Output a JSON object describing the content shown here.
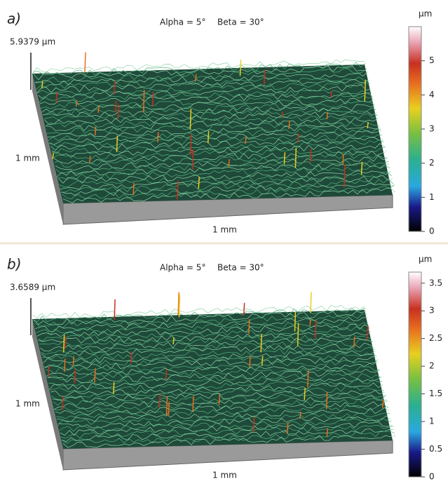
{
  "panels": [
    {
      "label": "a)",
      "alpha": "Alpha = 5°",
      "beta": "Beta = 30°",
      "max_height": "5.9379 µm",
      "y_axis_label": "1 mm",
      "x_axis_label": "1 mm",
      "colorbar": {
        "unit": "µm",
        "lim": [
          0,
          6
        ],
        "ticks": [
          0,
          1,
          2,
          3,
          4,
          5
        ]
      }
    },
    {
      "label": "b)",
      "alpha": "Alpha = 5°",
      "beta": "Beta = 30°",
      "max_height": "3.6589 µm",
      "y_axis_label": "1 mm",
      "x_axis_label": "1 mm",
      "colorbar": {
        "unit": "µm",
        "lim": [
          0,
          3.7
        ],
        "ticks": [
          0,
          0.5,
          1,
          1.5,
          2,
          2.5,
          3,
          3.5
        ]
      }
    }
  ]
}
